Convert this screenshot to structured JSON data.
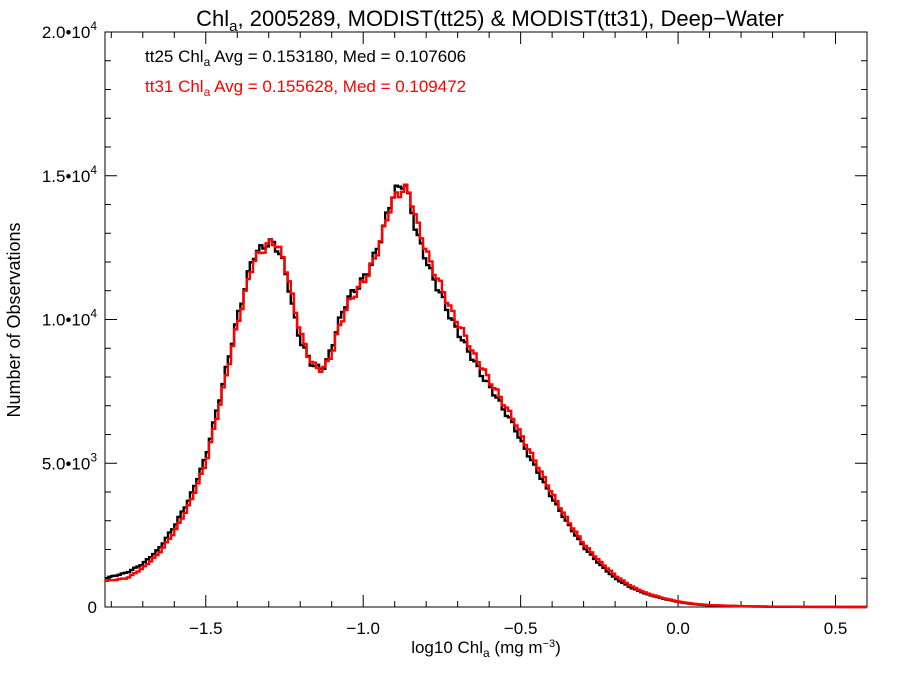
{
  "chart_data": {
    "type": "line",
    "title": {
      "main": "Chl",
      "sub": "a",
      "rest": ", 2005289, MODIST(tt25) & MODIST(tt31), Deep−Water"
    },
    "xlabel": {
      "main": "log10 Chl",
      "sub": "a",
      "rest": " (mg m",
      "sup": "−3",
      "end": ")"
    },
    "ylabel": "Number of Observations",
    "xlim": [
      -1.82,
      0.6
    ],
    "ylim": [
      0,
      20000
    ],
    "xticks": [
      {
        "value": -1.5,
        "label": "−1.5"
      },
      {
        "value": -1.0,
        "label": "−1.0"
      },
      {
        "value": -0.5,
        "label": "−0.5"
      },
      {
        "value": 0.0,
        "label": "0.0"
      },
      {
        "value": 0.5,
        "label": "0.5"
      }
    ],
    "yticks": [
      {
        "value": 0,
        "base": "0",
        "exp": ""
      },
      {
        "value": 5000,
        "base": "5.0•10",
        "exp": "3"
      },
      {
        "value": 10000,
        "base": "1.0•10",
        "exp": "4"
      },
      {
        "value": 15000,
        "base": "1.5•10",
        "exp": "4"
      },
      {
        "value": 20000,
        "base": "2.0•10",
        "exp": "4"
      }
    ],
    "grid": false,
    "annotations": [
      {
        "series": "tt25",
        "color": "#000000",
        "pre": "tt25 Chl",
        "sub": "a",
        "post": " Avg = 0.153180, Med = 0.107606"
      },
      {
        "series": "tt31",
        "color": "#ff0000",
        "pre": "tt31 Chl",
        "sub": "a",
        "post": " Avg = 0.155628, Med = 0.109472"
      }
    ],
    "x": [
      -1.82,
      -1.75,
      -1.7,
      -1.65,
      -1.6,
      -1.55,
      -1.5,
      -1.45,
      -1.4,
      -1.35,
      -1.32,
      -1.3,
      -1.28,
      -1.26,
      -1.24,
      -1.22,
      -1.2,
      -1.18,
      -1.16,
      -1.14,
      -1.12,
      -1.1,
      -1.08,
      -1.05,
      -1.02,
      -1.0,
      -0.98,
      -0.96,
      -0.94,
      -0.92,
      -0.9,
      -0.88,
      -0.87,
      -0.86,
      -0.85,
      -0.83,
      -0.8,
      -0.78,
      -0.75,
      -0.72,
      -0.7,
      -0.67,
      -0.65,
      -0.62,
      -0.6,
      -0.57,
      -0.55,
      -0.52,
      -0.5,
      -0.45,
      -0.4,
      -0.35,
      -0.3,
      -0.25,
      -0.2,
      -0.15,
      -0.1,
      -0.05,
      0.0,
      0.05,
      0.1,
      0.2,
      0.3,
      0.4,
      0.5,
      0.6
    ],
    "series": [
      {
        "name": "tt25",
        "color": "#000000",
        "values": [
          1000,
          1200,
          1500,
          2000,
          2800,
          3800,
          5200,
          7500,
          10000,
          12200,
          12500,
          12700,
          12600,
          12200,
          11400,
          10200,
          9300,
          8800,
          8400,
          8300,
          8400,
          9000,
          9800,
          10700,
          11100,
          11400,
          11800,
          12300,
          13000,
          13800,
          14500,
          14600,
          14800,
          14500,
          14000,
          13000,
          12100,
          11500,
          10800,
          10000,
          9600,
          9000,
          8600,
          8000,
          7700,
          7200,
          6800,
          6300,
          5800,
          4800,
          3800,
          2900,
          2100,
          1500,
          1000,
          680,
          450,
          300,
          180,
          100,
          60,
          25,
          10,
          5,
          2,
          0
        ]
      },
      {
        "name": "tt31",
        "color": "#ff0000",
        "values": [
          900,
          1000,
          1350,
          1850,
          2600,
          3600,
          5000,
          7300,
          9800,
          12000,
          12400,
          12650,
          12700,
          12300,
          11600,
          10500,
          9600,
          8900,
          8450,
          8250,
          8350,
          8800,
          9600,
          10500,
          11000,
          11300,
          11700,
          12200,
          12900,
          13700,
          14300,
          14400,
          14600,
          14500,
          14300,
          13400,
          12400,
          11800,
          11100,
          10300,
          9900,
          9300,
          8800,
          8300,
          7900,
          7400,
          7000,
          6500,
          6000,
          5000,
          3950,
          3000,
          2200,
          1600,
          1100,
          730,
          480,
          320,
          190,
          110,
          65,
          28,
          12,
          6,
          3,
          0
        ]
      }
    ]
  }
}
